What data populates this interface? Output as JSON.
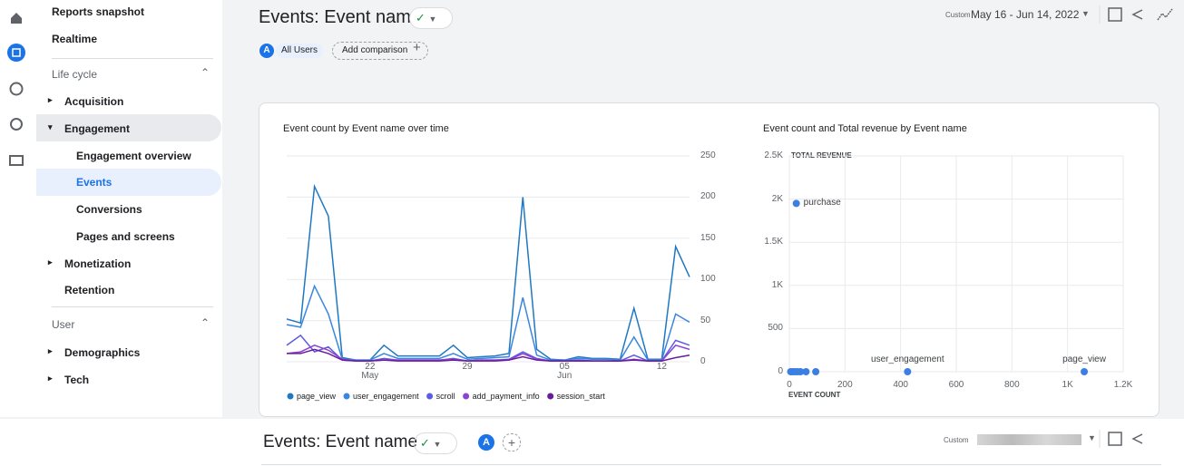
{
  "nav": {
    "items": [
      "Reports snapshot",
      "Realtime",
      "Life cycle",
      "Acquisition",
      "Engagement",
      "Engagement overview",
      "Events",
      "Conversions",
      "Pages and screens",
      "Monetization",
      "Retention",
      "User",
      "Demographics",
      "Tech"
    ]
  },
  "header": {
    "title": "Events: Event name",
    "date_prefix": "Custom",
    "date_range": "May 16 - Jun 14, 2022"
  },
  "comparison": {
    "segment_badge": "A",
    "segment": "All Users",
    "add_comparison": "Add comparison"
  },
  "chart_data": [
    {
      "type": "line",
      "title": "Event count by Event name over time",
      "categories": [
        null,
        null,
        null,
        null,
        null,
        null,
        "22\nMay",
        null,
        null,
        null,
        null,
        null,
        null,
        "29",
        null,
        null,
        null,
        null,
        null,
        null,
        "05\nJun",
        null,
        null,
        null,
        null,
        null,
        null,
        "12",
        null,
        null
      ],
      "series": [
        {
          "name": "page_view",
          "color": "#1f78c1",
          "values": [
            52,
            47,
            213,
            177,
            5,
            2,
            2,
            20,
            7,
            7,
            7,
            7,
            20,
            5,
            6,
            7,
            10,
            200,
            15,
            3,
            2,
            6,
            4,
            4,
            3,
            65,
            3,
            3,
            140,
            103
          ]
        },
        {
          "name": "user_engagement",
          "color": "#3b86e0",
          "values": [
            45,
            42,
            92,
            58,
            3,
            2,
            2,
            10,
            4,
            4,
            4,
            4,
            10,
            3,
            4,
            5,
            6,
            78,
            8,
            2,
            2,
            4,
            3,
            3,
            2,
            30,
            2,
            2,
            58,
            48
          ]
        },
        {
          "name": "scroll",
          "color": "#5c5ce0",
          "values": [
            20,
            32,
            12,
            18,
            2,
            1,
            1,
            4,
            2,
            2,
            2,
            2,
            4,
            1,
            2,
            2,
            3,
            12,
            4,
            1,
            1,
            2,
            1,
            1,
            1,
            8,
            1,
            1,
            26,
            20
          ]
        },
        {
          "name": "add_payment_info",
          "color": "#8a44d0",
          "values": [
            10,
            12,
            20,
            14,
            3,
            1,
            1,
            2,
            2,
            2,
            2,
            2,
            3,
            1,
            2,
            2,
            2,
            10,
            3,
            1,
            1,
            1,
            1,
            1,
            1,
            3,
            1,
            1,
            20,
            15
          ]
        },
        {
          "name": "session_start",
          "color": "#6a1b9a",
          "values": [
            10,
            10,
            15,
            10,
            2,
            1,
            1,
            2,
            1,
            1,
            1,
            1,
            2,
            1,
            1,
            1,
            2,
            6,
            2,
            1,
            1,
            1,
            1,
            1,
            1,
            2,
            1,
            1,
            5,
            8
          ]
        }
      ],
      "ylim": [
        0,
        250
      ],
      "yticks": [
        0,
        50,
        100,
        150,
        200,
        250
      ],
      "grid": true
    },
    {
      "type": "scatter",
      "title": "Event count and Total revenue by Event name",
      "xlabel": "EVENT COUNT",
      "ylabel": "TOTAL REVENUE",
      "color": "#3b7fe3",
      "x": [
        25,
        5,
        12,
        20,
        30,
        40,
        60,
        95,
        425,
        1060
      ],
      "values": [
        1950,
        0,
        0,
        0,
        0,
        0,
        0,
        0,
        0,
        0
      ],
      "labels": [
        "purchase",
        null,
        null,
        null,
        null,
        null,
        null,
        null,
        "user_engagement",
        "page_view"
      ],
      "xlim": [
        0,
        1200
      ],
      "xticks": [
        0,
        200,
        400,
        600,
        800,
        {
          "value": 1000,
          "label": "1K"
        },
        {
          "value": 1200,
          "label": "1.2K"
        }
      ],
      "ylim": [
        0,
        2500
      ],
      "yticks": [
        0,
        500,
        {
          "value": 1000,
          "label": "1K"
        },
        {
          "value": 1500,
          "label": "1.5K"
        },
        {
          "value": 2000,
          "label": "2K"
        },
        {
          "value": 2500,
          "label": "2.5K"
        }
      ],
      "grid": true
    }
  ],
  "footer": {
    "title": "Events: Event name",
    "segment_badge": "A",
    "date_prefix": "Custom"
  }
}
